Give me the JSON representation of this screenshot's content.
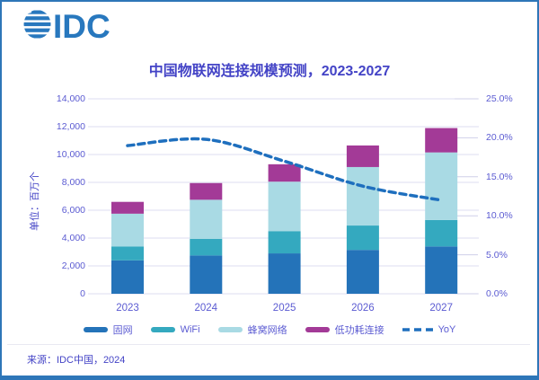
{
  "logo": {
    "brand": "IDC"
  },
  "title": "中国物联网连接规模预测，2023-2027",
  "source": "来源：IDC中国，2024",
  "chart_data": {
    "type": "bar",
    "subtype": "stacked-bars-with-yoy-line",
    "title": "中国物联网连接规模预测，2023-2027",
    "categories": [
      "2023",
      "2024",
      "2025",
      "2026",
      "2027"
    ],
    "series": [
      {
        "name": "固网",
        "color": "#2473B9",
        "values": [
          2400,
          2750,
          2900,
          3150,
          3400
        ]
      },
      {
        "name": "WiFi",
        "color": "#34A9BF",
        "values": [
          1000,
          1200,
          1600,
          1750,
          1900
        ]
      },
      {
        "name": "蜂窝网络",
        "color": "#A9DAE4",
        "values": [
          2350,
          2800,
          3550,
          4200,
          4850
        ]
      },
      {
        "name": "低功耗连接",
        "color": "#A33A97",
        "values": [
          850,
          1200,
          1250,
          1550,
          1750
        ]
      }
    ],
    "totals": [
      6600,
      7950,
      9300,
      10650,
      11900
    ],
    "line": {
      "name": "YoY",
      "color": "#1E6FBE",
      "style": "dashed",
      "values_percent": [
        19.0,
        19.8,
        17.0,
        13.8,
        12.0
      ]
    },
    "left_axis": {
      "title": "单位：百万个",
      "min": 0,
      "max": 14000,
      "ticks": [
        "0",
        "2,000",
        "4,000",
        "6,000",
        "8,000",
        "10,000",
        "12,000",
        "14,000"
      ]
    },
    "right_axis": {
      "min": 0,
      "max": 25,
      "ticks": [
        "0.0%",
        "5.0%",
        "10.0%",
        "15.0%",
        "20.0%",
        "25.0%"
      ]
    },
    "grid": true,
    "legend_position": "bottom"
  },
  "colors": {
    "frame_border": "#2E76B8",
    "logo_blue": "#2878BE",
    "heading_text": "#4343C6",
    "axis_text": "#5B5BD2",
    "gridline": "#DDDDF1",
    "right_tick": "#CFCFE9"
  }
}
